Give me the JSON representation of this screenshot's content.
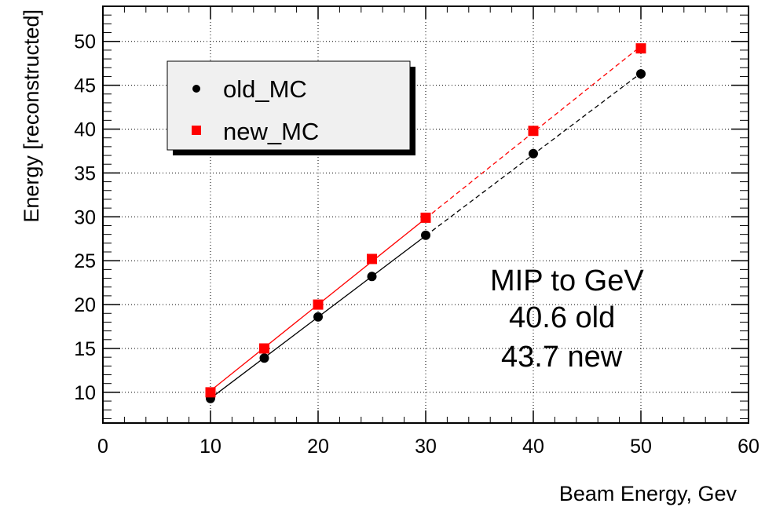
{
  "chart_data": {
    "type": "scatter",
    "xlabel": "Beam Energy, Gev",
    "ylabel": "Energy [reconstructed]",
    "xlim": [
      0,
      60
    ],
    "ylim": [
      6.5,
      54
    ],
    "x_ticks": [
      "0",
      "10",
      "20",
      "30",
      "40",
      "50",
      "60"
    ],
    "y_ticks": [
      "10",
      "15",
      "20",
      "25",
      "30",
      "35",
      "40",
      "45",
      "50"
    ],
    "grid": true,
    "legend_position": "top-left",
    "series": [
      {
        "name": "old_MC",
        "color": "#000000",
        "marker": "circle",
        "x": [
          10,
          15,
          20,
          25,
          30,
          40,
          50
        ],
        "y": [
          9.3,
          13.9,
          18.6,
          23.2,
          27.9,
          37.2,
          46.3
        ],
        "fit_solid_range": [
          10,
          30
        ],
        "fit_dashed_range": [
          30,
          50
        ]
      },
      {
        "name": "new_MC",
        "color": "#ff0000",
        "marker": "square",
        "x": [
          10,
          15,
          20,
          25,
          30,
          40,
          50
        ],
        "y": [
          10.0,
          15.0,
          20.0,
          25.2,
          29.9,
          39.8,
          49.2
        ],
        "fit_solid_range": [
          10,
          30
        ],
        "fit_dashed_range": [
          30,
          50
        ]
      }
    ],
    "annotations": [
      "MIP to GeV",
      "40.6 old",
      "43.7 new"
    ]
  }
}
